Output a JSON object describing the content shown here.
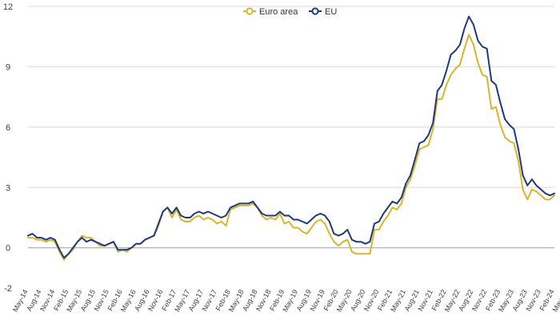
{
  "chart_data": {
    "type": "line",
    "title": "",
    "xlabel": "",
    "ylabel": "",
    "ylim": [
      -2,
      12
    ],
    "yticks": [
      -2,
      0,
      3,
      6,
      9,
      12
    ],
    "grid": "horizontal",
    "legend_position": "top-center",
    "x_tick_labels": [
      "May-14",
      "Aug-14",
      "Nov-14",
      "Feb-15",
      "May-15",
      "Aug-15",
      "Nov-15",
      "Feb-16",
      "May-16",
      "Aug-16",
      "Nov-16",
      "Feb-17",
      "May-17",
      "Aug-17",
      "Nov-17",
      "Feb-18",
      "May-18",
      "Aug-18",
      "Nov-18",
      "Feb-19",
      "May-19",
      "Aug-19",
      "Nov-19",
      "Feb-20",
      "May-20",
      "Aug-20",
      "Nov-20",
      "Feb-21",
      "May-21",
      "Aug-21",
      "Nov-21",
      "Feb-22",
      "May-22",
      "Aug-22",
      "Nov-22",
      "Feb-23",
      "May-23",
      "Aug-23",
      "Nov-23",
      "Feb-24",
      "May-24"
    ],
    "series": [
      {
        "name": "Euro area",
        "color": "#d9b52b",
        "values": [
          0.5,
          0.5,
          0.4,
          0.4,
          0.3,
          0.4,
          0.3,
          -0.2,
          -0.6,
          -0.3,
          -0.1,
          0.3,
          0.6,
          0.5,
          0.5,
          0.3,
          0.1,
          0.1,
          0.2,
          0.3,
          -0.2,
          -0.1,
          -0.2,
          0.0,
          0.2,
          0.2,
          0.4,
          0.5,
          0.6,
          1.1,
          1.8,
          2.0,
          1.5,
          1.9,
          1.4,
          1.3,
          1.3,
          1.5,
          1.6,
          1.4,
          1.5,
          1.4,
          1.2,
          1.3,
          1.1,
          1.9,
          2.0,
          2.1,
          2.1,
          2.1,
          2.2,
          2.0,
          1.6,
          1.4,
          1.5,
          1.4,
          1.7,
          1.2,
          1.3,
          1.0,
          1.0,
          0.8,
          0.7,
          1.0,
          1.3,
          1.4,
          1.2,
          0.7,
          0.3,
          0.1,
          0.3,
          0.4,
          -0.2,
          -0.3,
          -0.3,
          -0.3,
          -0.3,
          0.9,
          0.9,
          1.3,
          1.6,
          2.0,
          1.9,
          2.2,
          3.0,
          3.4,
          4.1,
          4.9,
          5.0,
          5.1,
          5.9,
          7.4,
          7.4,
          8.1,
          8.6,
          8.9,
          9.1,
          9.9,
          10.6,
          10.1,
          9.2,
          8.6,
          8.5,
          6.9,
          7.0,
          6.1,
          5.5,
          5.3,
          5.2,
          4.3,
          2.9,
          2.4,
          2.9,
          2.8,
          2.6,
          2.4,
          2.4,
          2.6
        ]
      },
      {
        "name": "EU",
        "color": "#1f3a7a",
        "values": [
          0.6,
          0.7,
          0.5,
          0.5,
          0.4,
          0.5,
          0.4,
          -0.1,
          -0.5,
          -0.3,
          0.0,
          0.3,
          0.5,
          0.3,
          0.4,
          0.3,
          0.2,
          0.1,
          0.2,
          0.3,
          -0.1,
          -0.1,
          -0.1,
          0.0,
          0.2,
          0.2,
          0.4,
          0.5,
          0.6,
          1.2,
          1.8,
          2.0,
          1.7,
          2.0,
          1.6,
          1.5,
          1.5,
          1.7,
          1.8,
          1.7,
          1.8,
          1.7,
          1.6,
          1.5,
          1.6,
          2.0,
          2.1,
          2.2,
          2.2,
          2.2,
          2.3,
          2.0,
          1.7,
          1.6,
          1.6,
          1.6,
          1.8,
          1.6,
          1.6,
          1.4,
          1.4,
          1.3,
          1.2,
          1.4,
          1.6,
          1.7,
          1.6,
          1.3,
          0.7,
          0.6,
          0.7,
          0.9,
          0.4,
          0.3,
          0.3,
          0.2,
          0.3,
          1.2,
          1.3,
          1.7,
          2.0,
          2.3,
          2.2,
          2.5,
          3.2,
          3.6,
          4.4,
          5.2,
          5.3,
          5.6,
          6.2,
          7.8,
          8.1,
          8.8,
          9.6,
          9.8,
          10.1,
          10.9,
          11.5,
          11.1,
          10.3,
          10.0,
          9.9,
          8.3,
          8.1,
          7.2,
          6.4,
          6.1,
          5.9,
          4.9,
          3.6,
          3.1,
          3.4,
          3.1,
          2.9,
          2.7,
          2.6,
          2.7
        ]
      }
    ]
  }
}
